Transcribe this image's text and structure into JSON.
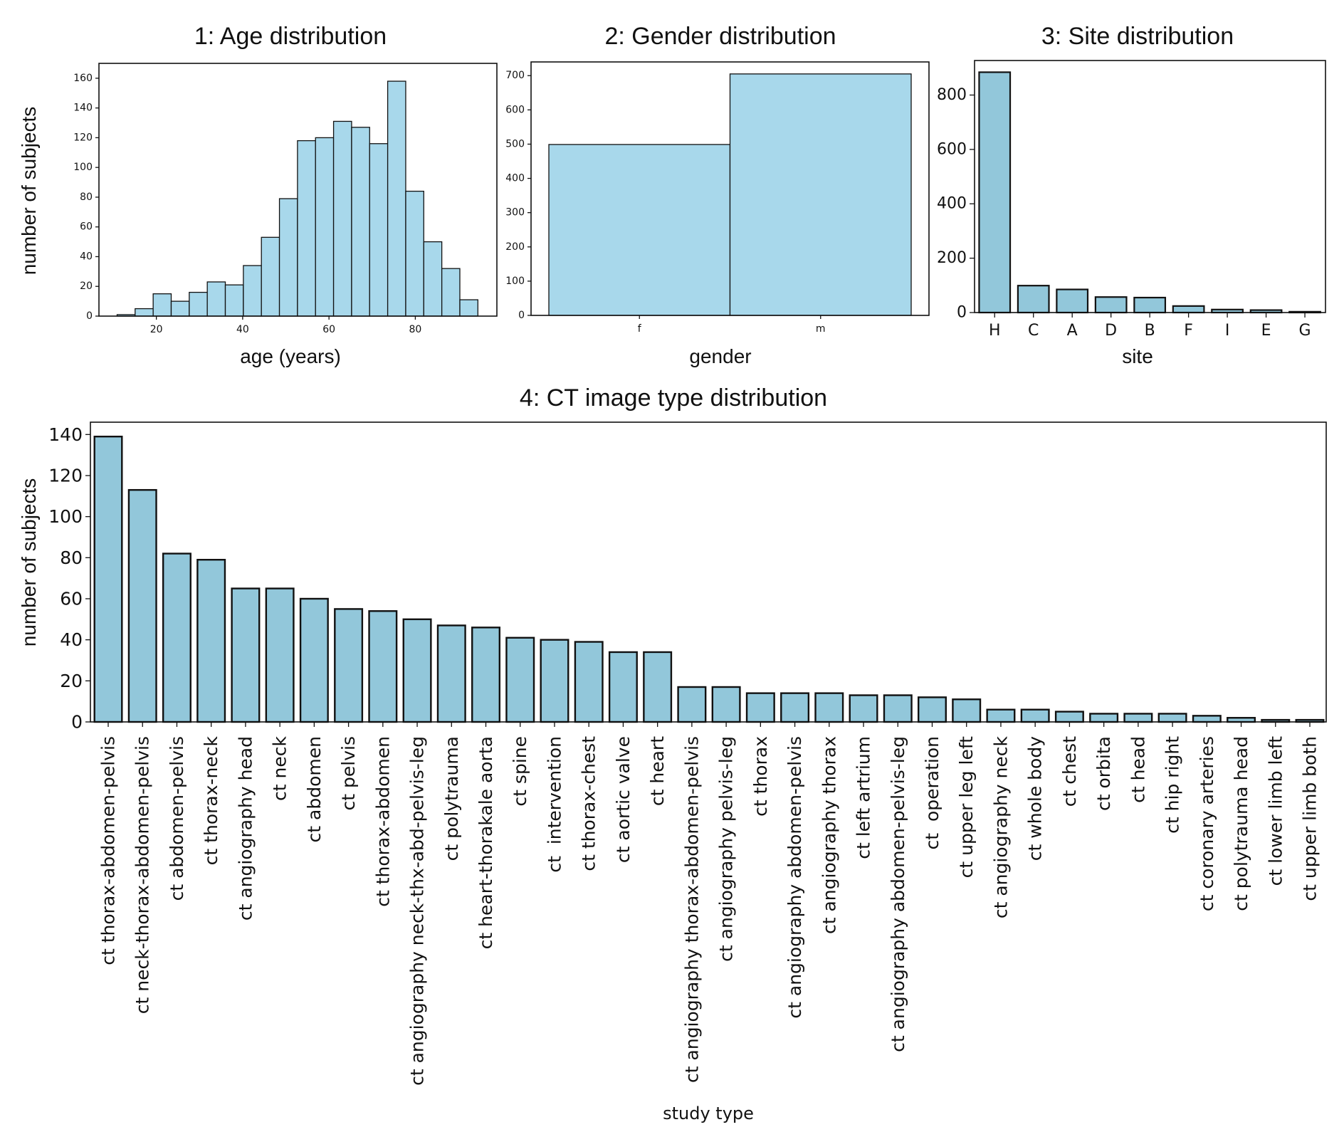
{
  "colors": {
    "hist_fill": "#a8d8eb",
    "bar_fill": "#92c7da",
    "edge": "#111111"
  },
  "chart_data": [
    {
      "id": "age",
      "type": "bar",
      "subtype": "histogram",
      "title": "1: Age distribution",
      "xlabel": "age (years)",
      "ylabel": "number of subjects",
      "bin_start": 10.9,
      "bin_width": 4.18,
      "values": [
        1,
        5,
        15,
        10,
        16,
        23,
        21,
        34,
        53,
        79,
        118,
        120,
        131,
        127,
        116,
        158,
        84,
        50,
        32,
        11
      ],
      "xticks": [
        20,
        40,
        60,
        80
      ],
      "yticks": [
        0,
        20,
        40,
        60,
        80,
        100,
        120,
        140,
        160
      ],
      "xlim": [
        6.7,
        98.9
      ],
      "ylim": [
        0,
        170
      ],
      "grid": false
    },
    {
      "id": "gender",
      "type": "bar",
      "title": "2: Gender distribution",
      "xlabel": "gender",
      "ylabel": "",
      "categories": [
        "f",
        "m"
      ],
      "values": [
        499,
        705
      ],
      "yticks": [
        0,
        100,
        200,
        300,
        400,
        500,
        600,
        700
      ],
      "ylim": [
        0,
        740
      ],
      "grid": false
    },
    {
      "id": "site",
      "type": "bar",
      "title": "3: Site distribution",
      "xlabel": "site",
      "ylabel": "",
      "categories": [
        "H",
        "C",
        "A",
        "D",
        "B",
        "F",
        "I",
        "E",
        "G"
      ],
      "values": [
        884,
        99,
        85,
        57,
        55,
        24,
        11,
        9,
        3
      ],
      "yticks": [
        0,
        200,
        400,
        600,
        800
      ],
      "ylim": [
        0,
        927
      ],
      "grid": false
    },
    {
      "id": "ct",
      "type": "bar",
      "title": "4: CT image type distribution",
      "xlabel": "study type",
      "ylabel": "number of subjects",
      "categories": [
        "ct thorax-abdomen-pelvis",
        "ct neck-thorax-abdomen-pelvis",
        "ct abdomen-pelvis",
        "ct thorax-neck",
        "ct angiography head",
        "ct neck",
        "ct abdomen",
        "ct pelvis",
        "ct thorax-abdomen",
        "ct angiography neck-thx-abd-pelvis-leg",
        "ct polytrauma",
        "ct heart-thorakale aorta",
        "ct spine",
        "ct  intervention",
        "ct thorax-chest",
        "ct aortic valve",
        "ct heart",
        "ct angiography thorax-abdomen-pelvis",
        "ct angiography pelvis-leg",
        "ct thorax",
        "ct angiography abdomen-pelvis",
        "ct angiography thorax",
        "ct left artrium",
        "ct angiography abdomen-pelvis-leg",
        "ct  operation",
        "ct upper leg left",
        "ct angiography neck",
        "ct whole body",
        "ct chest",
        "ct orbita",
        "ct head",
        "ct hip right",
        "ct coronary arteries",
        "ct polytrauma head",
        "ct lower limb left",
        "ct upper limb both"
      ],
      "values": [
        139,
        113,
        82,
        79,
        65,
        65,
        60,
        55,
        54,
        50,
        47,
        46,
        41,
        40,
        39,
        34,
        34,
        17,
        17,
        14,
        14,
        14,
        13,
        13,
        12,
        11,
        6,
        6,
        5,
        4,
        4,
        4,
        3,
        2,
        1,
        1
      ],
      "yticks": [
        0,
        20,
        40,
        60,
        80,
        100,
        120,
        140
      ],
      "ylim": [
        0,
        146
      ],
      "grid": false
    }
  ]
}
